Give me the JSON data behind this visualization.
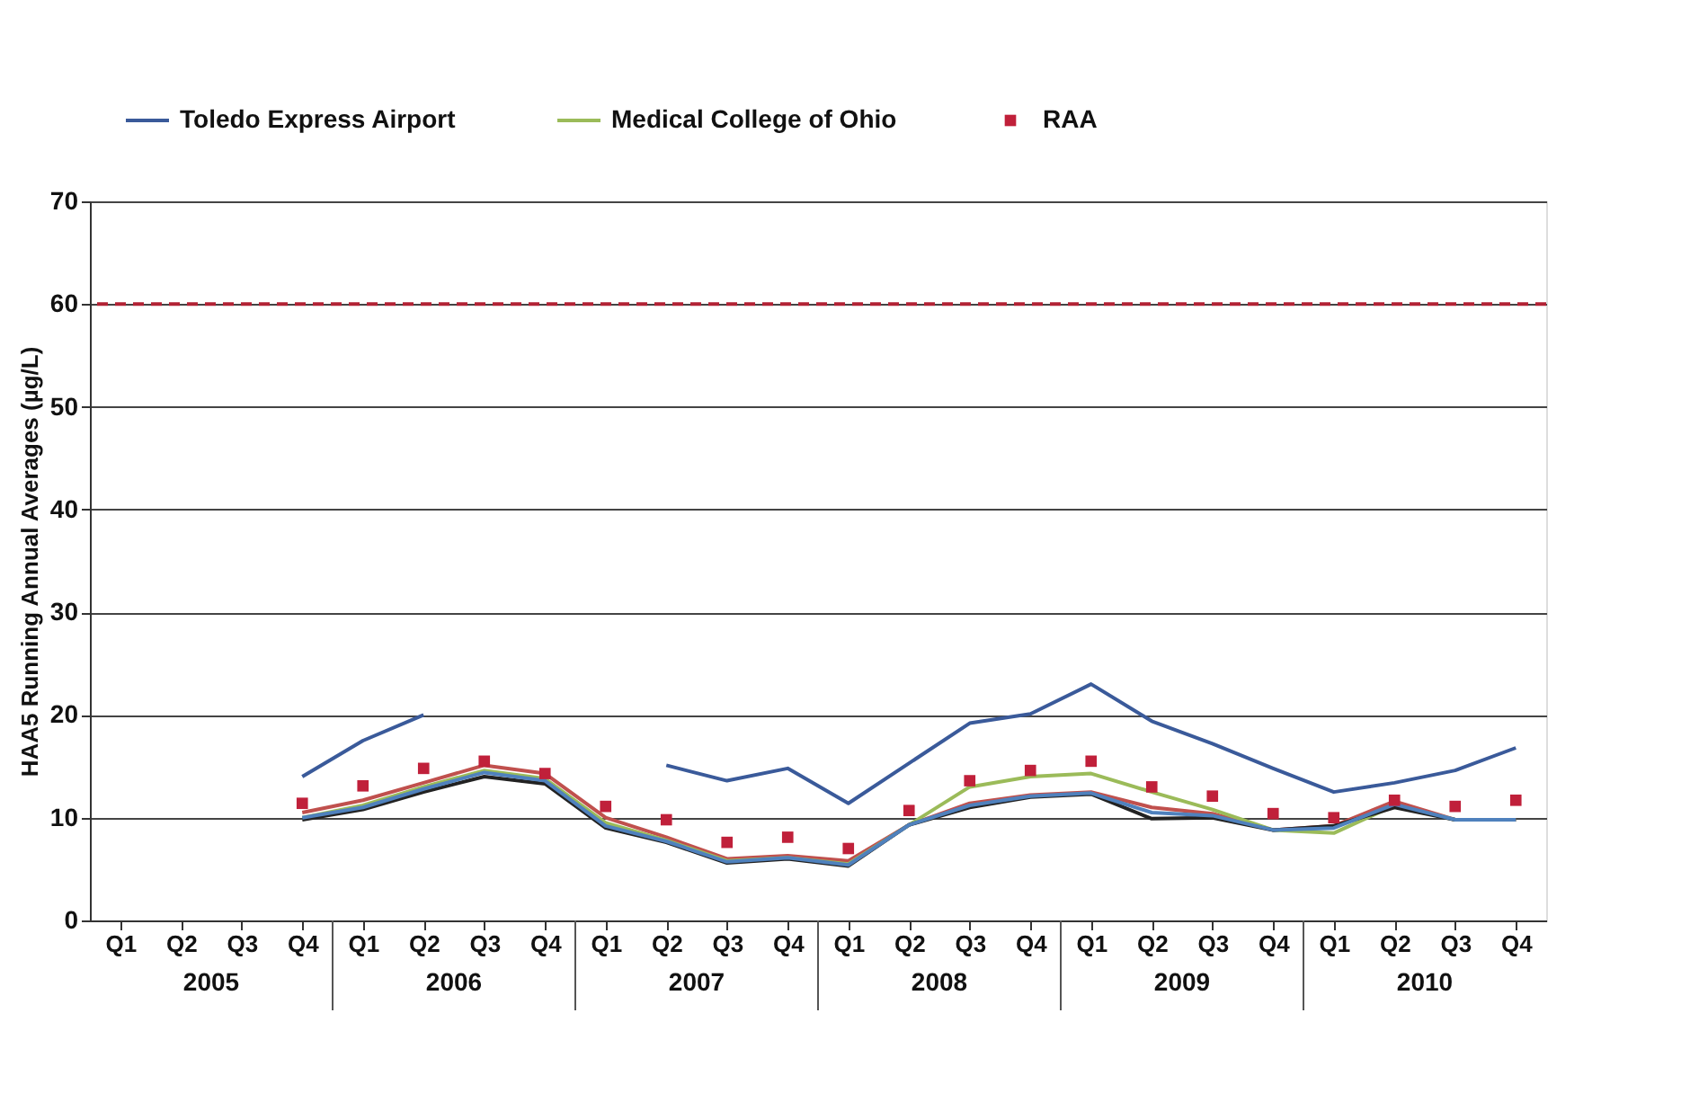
{
  "chart_data": {
    "type": "line",
    "ylabel": "HAA5 Running Annual Averages (µg/L)",
    "categories": [
      "Q1",
      "Q2",
      "Q3",
      "Q4",
      "Q1",
      "Q2",
      "Q3",
      "Q4",
      "Q1",
      "Q2",
      "Q3",
      "Q4",
      "Q1",
      "Q2",
      "Q3",
      "Q4",
      "Q1",
      "Q2",
      "Q3",
      "Q4",
      "Q1",
      "Q2",
      "Q3",
      "Q4"
    ],
    "annotations": [
      "2005",
      "2006",
      "2007",
      "2008",
      "2009",
      "2010"
    ],
    "series": [
      {
        "name": "Toledo Express Airport",
        "color": "#3a5a9a",
        "values": [
          null,
          null,
          null,
          14,
          17.5,
          20,
          null,
          null,
          null,
          15.1,
          13.6,
          14.8,
          11.4,
          15.3,
          19.2,
          20.1,
          23,
          19.4,
          17.2,
          14.8,
          12.5,
          13.4,
          14.6,
          16.8
        ]
      },
      {
        "color": "#c0504d",
        "values": [
          null,
          null,
          null,
          10.5,
          11.7,
          13.4,
          15.1,
          14.3,
          10,
          8.1,
          6,
          6.3,
          5.8,
          9.3,
          11.4,
          12.2,
          12.5,
          11,
          10.4,
          8.8,
          9.2,
          11.6,
          9.8,
          9.8
        ]
      },
      {
        "name": "Medical College of Ohio",
        "color": "#9bbb59",
        "values": [
          null,
          null,
          null,
          10,
          11.2,
          13,
          14.6,
          13.8,
          9.5,
          7.8,
          5.8,
          6.1,
          5.5,
          9.3,
          13,
          14,
          14.3,
          12.5,
          10.8,
          8.8,
          8.5,
          11.2,
          9.8,
          9.8
        ]
      },
      {
        "color": "#222222",
        "values": [
          null,
          null,
          null,
          9.8,
          10.8,
          12.5,
          14,
          13.3,
          9,
          7.6,
          5.6,
          6,
          5.3,
          9.3,
          11,
          12,
          12.3,
          9.9,
          10,
          8.8,
          9.2,
          11,
          9.8,
          9.8
        ]
      },
      {
        "color": "#4f81bd",
        "values": [
          null,
          null,
          null,
          10,
          11,
          12.8,
          14.4,
          13.6,
          9.2,
          7.7,
          5.7,
          6.1,
          5.4,
          9.3,
          11.2,
          12.1,
          12.4,
          10.5,
          10.2,
          8.8,
          9,
          11.3,
          9.8,
          9.8
        ]
      },
      {
        "name": "RAA",
        "type": "scatter",
        "marker": "square",
        "color": "#c0203a",
        "values": [
          null,
          null,
          null,
          11.4,
          13.1,
          14.8,
          15.5,
          14.3,
          11.1,
          9.8,
          7.6,
          8.1,
          7.0,
          10.7,
          13.6,
          14.6,
          15.5,
          13,
          12.1,
          10.4,
          10,
          11.7,
          11.1,
          11.7
        ]
      }
    ],
    "ref_lines": [
      {
        "axis": "y",
        "value": 60,
        "color": "#b22234",
        "line_style": "dashed"
      }
    ],
    "ylim": [
      0,
      70
    ],
    "yticks": [
      0,
      10,
      20,
      30,
      40,
      50,
      60,
      70
    ],
    "grid": "y",
    "legend": "top",
    "marker": "none",
    "line_style": "solid"
  }
}
